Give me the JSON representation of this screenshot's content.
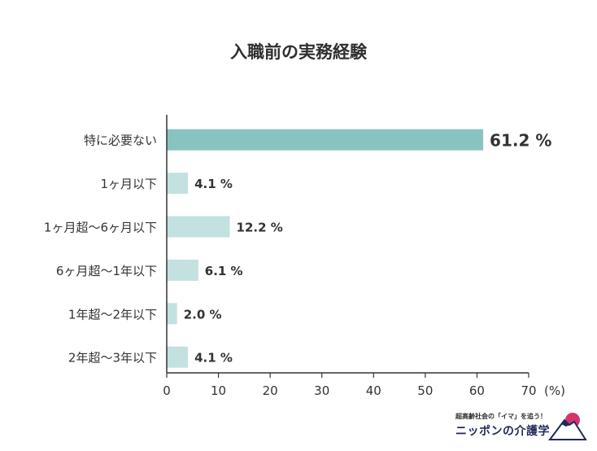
{
  "title": "入職前の実務経験",
  "chart_data": {
    "type": "bar",
    "orientation": "horizontal",
    "categories": [
      "特に必要ない",
      "1ヶ月以下",
      "1ヶ月超〜6ヶ月以下",
      "6ヶ月超〜1年以下",
      "1年超〜2年以下",
      "2年超〜3年以下"
    ],
    "values": [
      61.2,
      4.1,
      12.2,
      6.1,
      2.0,
      4.1
    ],
    "value_labels": [
      "61.2 %",
      "4.1 %",
      "12.2 %",
      "6.1 %",
      "2.0 %",
      "4.1 %"
    ],
    "highlight_index": 0,
    "xlim": [
      0,
      70
    ],
    "xticks": [
      0,
      10,
      20,
      30,
      40,
      50,
      60,
      70
    ],
    "xunit": "(%)",
    "grid": false,
    "colors": {
      "highlight": "#88c3c1",
      "normal": "#c3e1e0",
      "axis": "#333333"
    }
  },
  "logo": {
    "tagline": "超高齢社会の「イマ」を追う！",
    "name": "ニッポンの介護学"
  }
}
